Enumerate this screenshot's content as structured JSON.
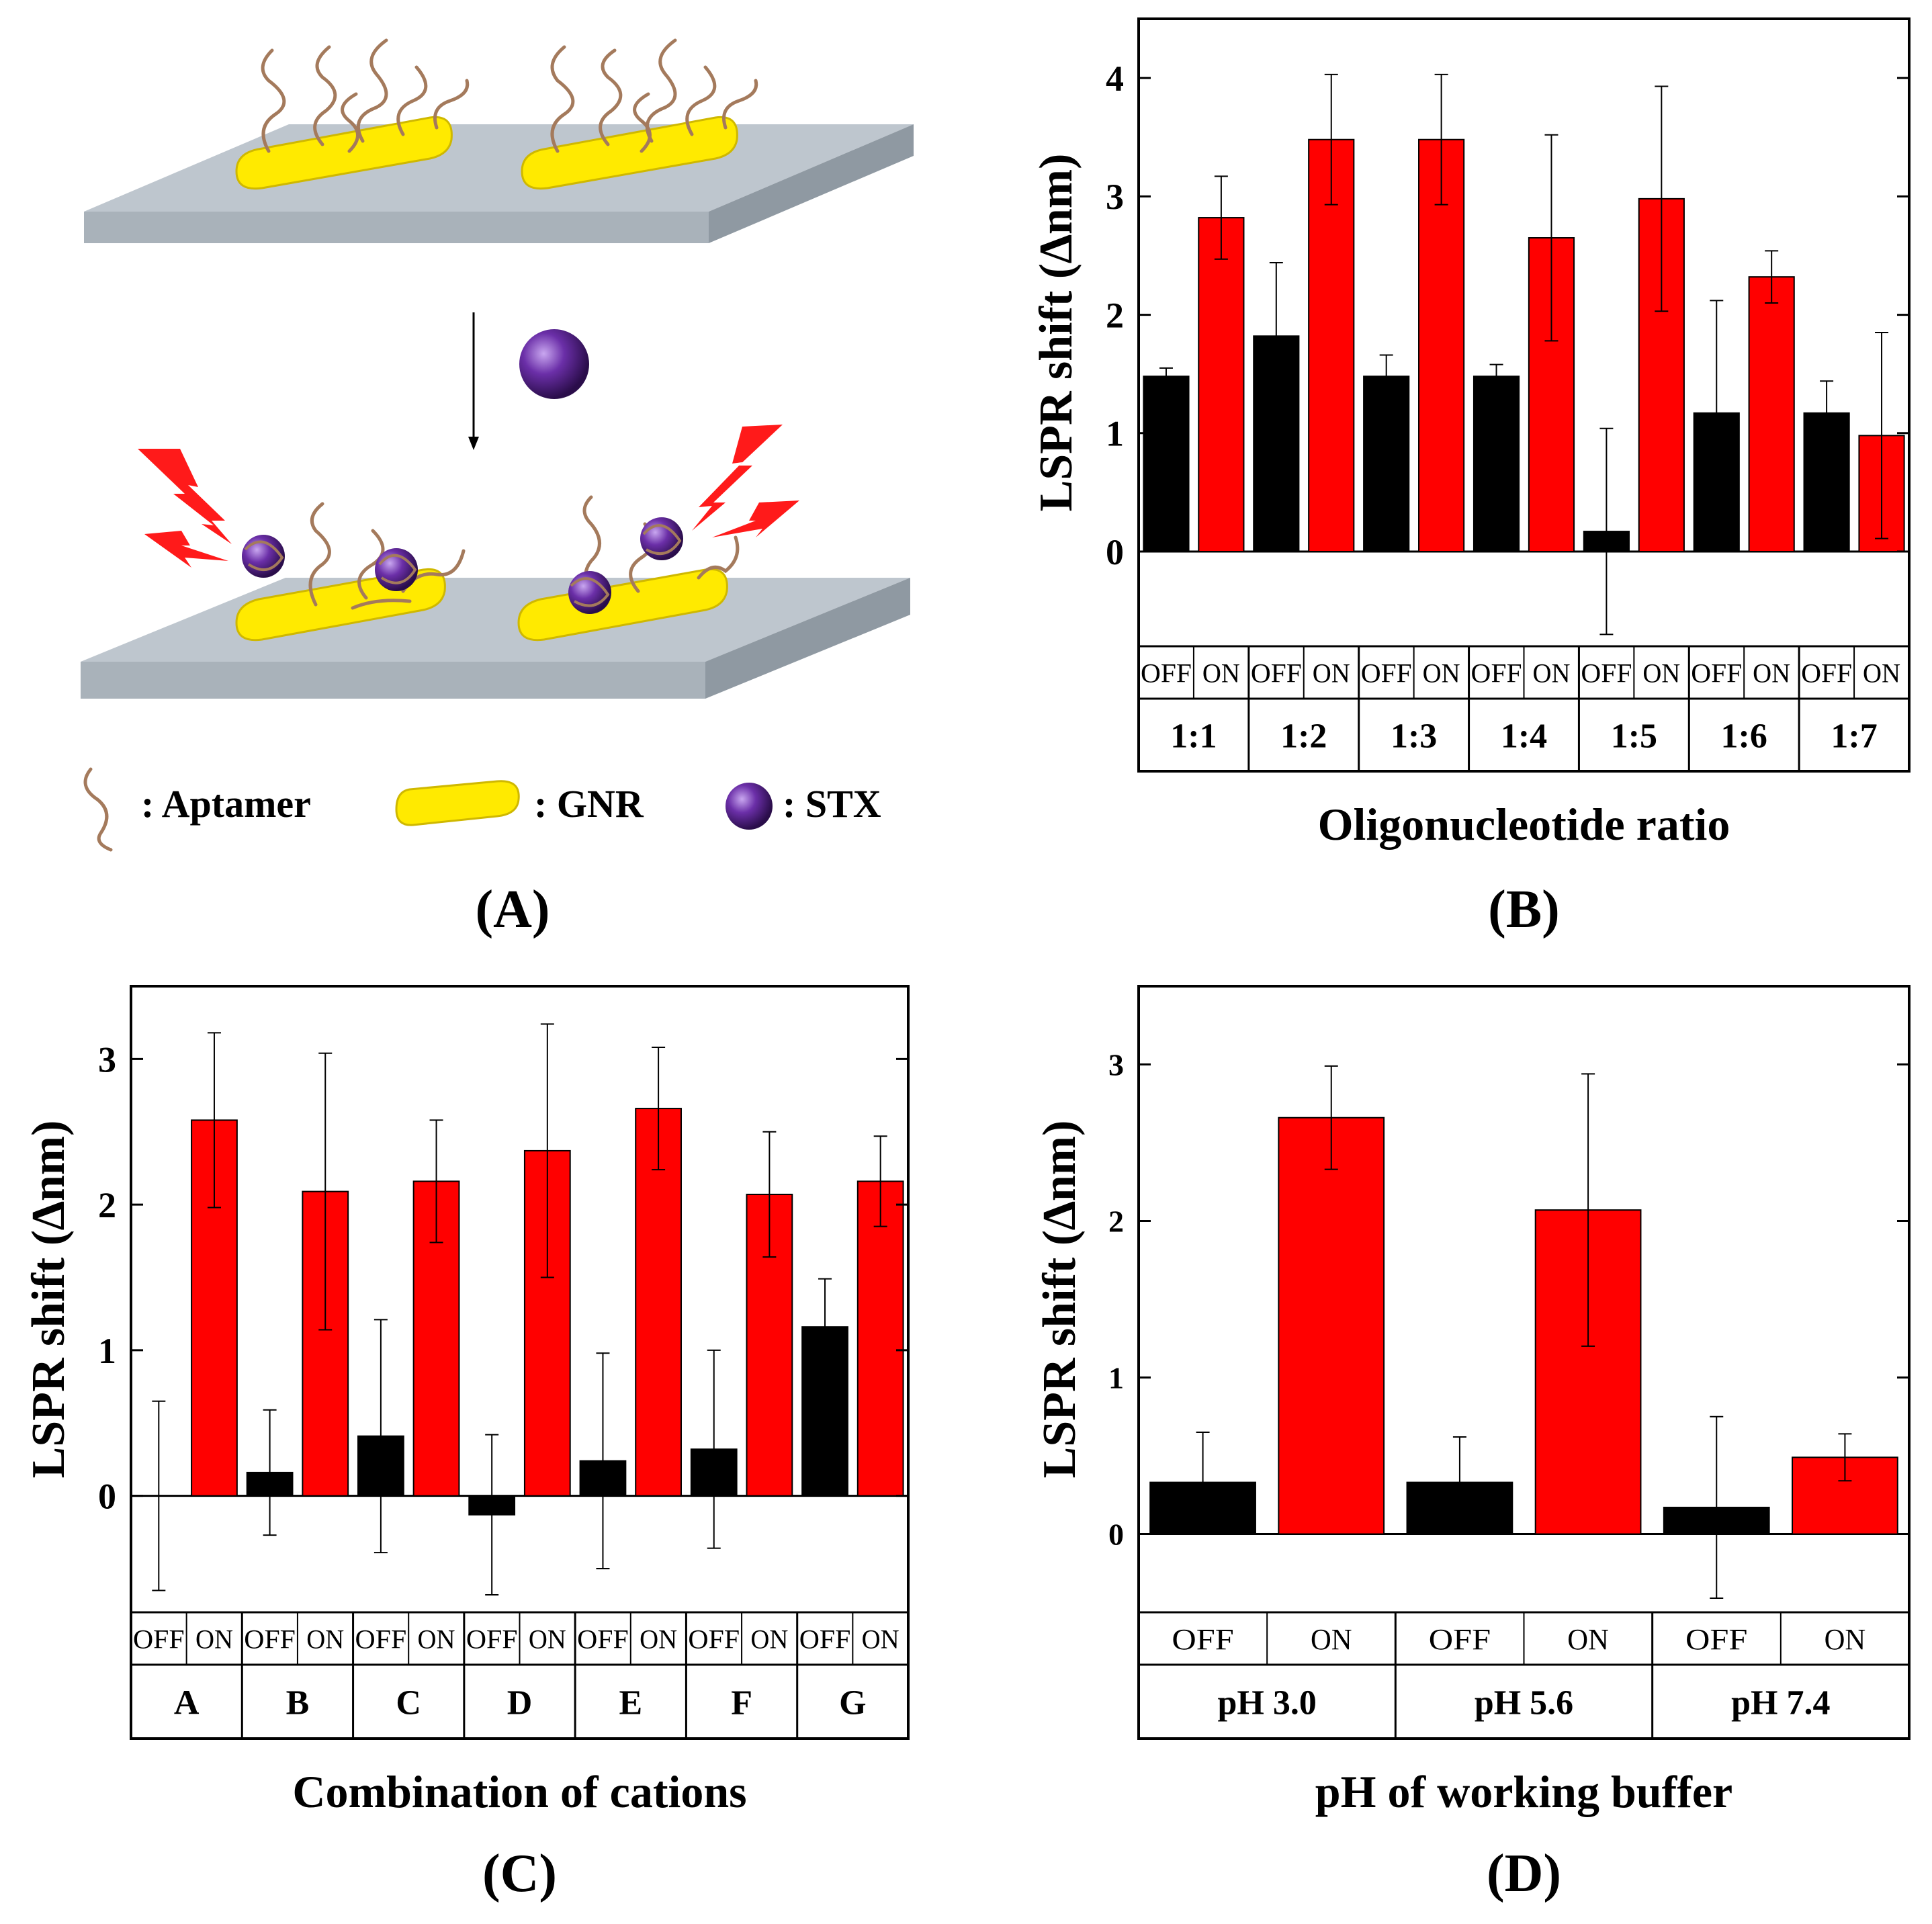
{
  "colors": {
    "off_bar": "#000000",
    "on_bar": "#ff0000",
    "gnr": "#ffee00",
    "gnr_edge": "#c8b400",
    "substrate_top": "#b9c1c9",
    "substrate_side": "#8d979f",
    "aptamer": "#a0785a",
    "stx": "#5a2a8c",
    "lightning": "#ff1a1a"
  },
  "panel_a": {
    "label": "(A)",
    "legend": [
      {
        "icon": "aptamer-icon",
        "text": ": Aptamer"
      },
      {
        "icon": "gnr-icon",
        "text": ": GNR"
      },
      {
        "icon": "stx-icon",
        "text": ": STX"
      }
    ]
  },
  "chart_data": [
    {
      "panel": "(B)",
      "type": "bar",
      "ylabel": "LSPR shift (∆nm)",
      "xlabel": "Oligonucleotide ratio",
      "ylim": [
        -0.8,
        4.5
      ],
      "yticks": [
        0,
        1,
        2,
        3,
        4
      ],
      "legend": "none",
      "grid": false,
      "subcategories": [
        "OFF",
        "ON"
      ],
      "categories": [
        "1:1",
        "1:2",
        "1:3",
        "1:4",
        "1:5",
        "1:6",
        "1:7"
      ],
      "series": [
        {
          "values": [
            1.48,
            1.82,
            1.48,
            1.48,
            0.17,
            1.17,
            1.17
          ],
          "errors": [
            0.07,
            0.62,
            0.18,
            0.1,
            0.87,
            0.95,
            0.27
          ]
        },
        {
          "values": [
            2.82,
            3.48,
            3.48,
            2.65,
            2.98,
            2.32,
            0.98
          ],
          "errors": [
            0.35,
            0.55,
            0.55,
            0.87,
            0.95,
            0.22,
            0.87
          ]
        }
      ]
    },
    {
      "panel": "(C)",
      "type": "bar",
      "ylabel": "LSPR shift (∆nm)",
      "xlabel": "Combination of cations",
      "ylim": [
        -0.8,
        3.5
      ],
      "yticks": [
        0,
        1,
        2,
        3
      ],
      "legend": "none",
      "grid": false,
      "subcategories": [
        "OFF",
        "ON"
      ],
      "categories": [
        "A",
        "B",
        "C",
        "D",
        "E",
        "F",
        "G"
      ],
      "series": [
        {
          "values": [
            0.0,
            0.16,
            0.41,
            -0.13,
            0.24,
            0.32,
            1.16
          ],
          "errors": [
            0.65,
            0.43,
            0.8,
            0.55,
            0.74,
            0.68,
            0.33
          ]
        },
        {
          "values": [
            2.58,
            2.09,
            2.16,
            2.37,
            2.66,
            2.07,
            2.16
          ],
          "errors": [
            0.6,
            0.95,
            0.42,
            0.87,
            0.42,
            0.43,
            0.31
          ]
        }
      ]
    },
    {
      "panel": "(D)",
      "type": "bar",
      "ylabel": "LSPR shift (∆nm)",
      "xlabel": "pH of working buffer",
      "ylim": [
        -0.5,
        3.5
      ],
      "yticks": [
        0,
        1,
        2,
        3
      ],
      "legend": "none",
      "grid": false,
      "subcategories": [
        "OFF",
        "ON"
      ],
      "categories": [
        "pH 3.0",
        "pH 5.6",
        "pH 7.4"
      ],
      "series": [
        {
          "values": [
            0.33,
            0.33,
            0.17
          ],
          "errors": [
            0.32,
            0.29,
            0.58
          ]
        },
        {
          "values": [
            2.66,
            2.07,
            0.49
          ],
          "errors": [
            0.33,
            0.87,
            0.15
          ]
        }
      ]
    }
  ]
}
